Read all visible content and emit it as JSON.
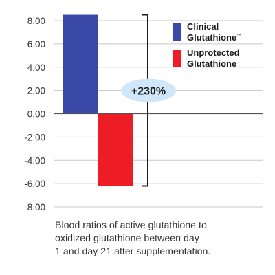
{
  "chart_data": {
    "type": "bar",
    "categories": [
      "Clinical Glutathione™",
      "Unprotected Glutathione"
    ],
    "values": [
      8.5,
      -6.2
    ],
    "colors": [
      "#3a48a8",
      "#ee1c25"
    ],
    "ylim": [
      -8,
      8
    ],
    "yticks": [
      "8.00",
      "6.00",
      "4.00",
      "2.00",
      "0.00",
      "-2.00",
      "-4.00",
      "-6.00",
      "-8.00"
    ],
    "ytick_values": [
      8,
      6,
      4,
      2,
      0,
      -2,
      -4,
      -6,
      -8
    ],
    "grid": true,
    "legend": {
      "placement": "right",
      "entries": [
        {
          "line1": "Clinical",
          "line2": "Glutathione",
          "mark": "™",
          "color": "#3a48a8"
        },
        {
          "line1": "Unprotected",
          "line2": "Glutathione",
          "mark": "",
          "color": "#ee1c25"
        }
      ]
    },
    "annotation": {
      "label": "+230%",
      "color": "#cfe7f8"
    },
    "caption": [
      "Blood ratios of active glutathione to",
      "oxidized glutathione between day",
      "1 and day 21 after supplementation."
    ]
  }
}
